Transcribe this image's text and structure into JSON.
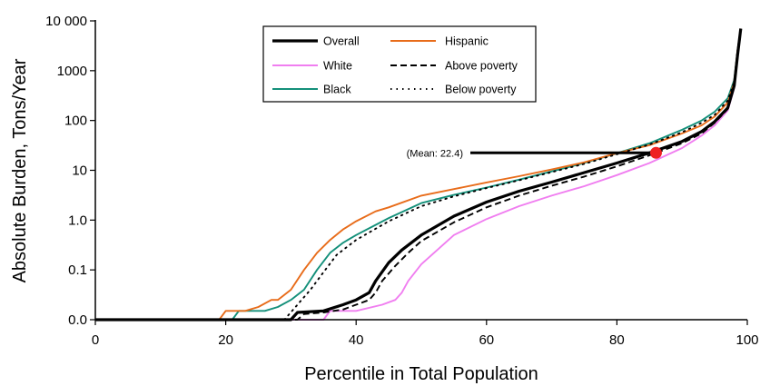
{
  "chart_data": {
    "type": "line",
    "xlabel": "Percentile in Total Population",
    "ylabel": "Absolute Burden, Tons/Year",
    "xlim": [
      0,
      100
    ],
    "x_scale": "linear",
    "y_scale": "log",
    "ylim": [
      0.01,
      10000
    ],
    "x_ticks": [
      0,
      20,
      40,
      60,
      80,
      100
    ],
    "x_tick_labels": [
      "0",
      "20",
      "40",
      "60",
      "80",
      "100"
    ],
    "y_ticks": [
      0.01,
      0.1,
      1,
      10,
      100,
      1000,
      10000
    ],
    "y_tick_labels": [
      "0.0",
      "0.1",
      "1.0",
      "10",
      "100",
      "1000",
      "10 000"
    ],
    "grid": false,
    "legend_position": "top-center",
    "legend_columns": 2,
    "series": [
      {
        "name": "Overall",
        "color": "#000000",
        "style": "solid",
        "x": [
          0,
          30,
          31,
          35,
          38,
          40,
          42,
          43,
          45,
          47,
          50,
          55,
          60,
          65,
          70,
          75,
          80,
          85,
          90,
          93,
          95,
          97,
          98,
          98.5,
          99
        ],
        "y": [
          0.01,
          0.01,
          0.014,
          0.015,
          0.02,
          0.025,
          0.035,
          0.06,
          0.14,
          0.25,
          0.5,
          1.2,
          2.3,
          3.8,
          5.8,
          9,
          14,
          22.4,
          38,
          60,
          95,
          180,
          500,
          2000,
          7000
        ]
      },
      {
        "name": "White",
        "color": "#f07ef0",
        "style": "solid",
        "x": [
          0,
          35,
          36,
          40,
          44,
          46,
          47,
          48,
          50,
          55,
          60,
          65,
          70,
          75,
          80,
          85,
          90,
          93,
          95,
          97,
          98,
          98.5,
          99
        ],
        "y": [
          0.01,
          0.01,
          0.015,
          0.015,
          0.02,
          0.025,
          0.035,
          0.06,
          0.13,
          0.5,
          1.05,
          1.9,
          3.1,
          4.8,
          8,
          14,
          28,
          50,
          80,
          160,
          450,
          2000,
          7000
        ]
      },
      {
        "name": "Black",
        "color": "#14907a",
        "style": "solid",
        "x": [
          0,
          21,
          22,
          26,
          28,
          30,
          32,
          34,
          36,
          38,
          40,
          45,
          50,
          55,
          60,
          65,
          70,
          75,
          80,
          85,
          90,
          93,
          95,
          97,
          98,
          98.5,
          99
        ],
        "y": [
          0.01,
          0.01,
          0.015,
          0.015,
          0.018,
          0.025,
          0.04,
          0.1,
          0.22,
          0.35,
          0.5,
          1.1,
          2.2,
          3.2,
          4.5,
          6.5,
          9.5,
          14,
          22,
          35,
          65,
          100,
          150,
          280,
          650,
          2500,
          7000
        ]
      },
      {
        "name": "Hispanic",
        "color": "#e86c1a",
        "style": "solid",
        "x": [
          0,
          19,
          20,
          23,
          25,
          27,
          28,
          30,
          32,
          34,
          36,
          38,
          40,
          43,
          45,
          50,
          55,
          60,
          65,
          70,
          75,
          80,
          85,
          90,
          93,
          95,
          97,
          98,
          98.5,
          99
        ],
        "y": [
          0.01,
          0.01,
          0.015,
          0.015,
          0.018,
          0.025,
          0.025,
          0.04,
          0.1,
          0.22,
          0.4,
          0.65,
          0.95,
          1.5,
          1.8,
          3.1,
          4.2,
          5.7,
          7.6,
          10.4,
          14.5,
          22,
          32,
          55,
          80,
          120,
          230,
          600,
          2500,
          7000
        ]
      },
      {
        "name": "Above poverty",
        "color": "#000000",
        "style": "dashed",
        "x": [
          0,
          31,
          32,
          35,
          38,
          40,
          42,
          43,
          44,
          46,
          48,
          50,
          55,
          60,
          65,
          70,
          75,
          80,
          85,
          90,
          93,
          95,
          97,
          98,
          98.5,
          99
        ],
        "y": [
          0.01,
          0.01,
          0.013,
          0.014,
          0.016,
          0.02,
          0.025,
          0.035,
          0.06,
          0.12,
          0.22,
          0.38,
          0.9,
          1.8,
          3.1,
          4.9,
          7.5,
          12,
          20,
          35,
          55,
          90,
          170,
          480,
          2000,
          7000
        ]
      },
      {
        "name": "Below poverty",
        "color": "#000000",
        "style": "dotted",
        "x": [
          0,
          29,
          31,
          33,
          35,
          37,
          40,
          45,
          50,
          55,
          60,
          65,
          70,
          75,
          80,
          85,
          90,
          93,
          95,
          97,
          98,
          98.5,
          99
        ],
        "y": [
          0.01,
          0.01,
          0.02,
          0.04,
          0.09,
          0.2,
          0.4,
          0.95,
          1.9,
          3,
          4.4,
          6.3,
          9.2,
          13.5,
          21,
          33,
          58,
          90,
          130,
          250,
          600,
          2500,
          7000
        ]
      }
    ],
    "annotations": [
      {
        "text": "(Mean: 22.4)",
        "y": 22.4,
        "marker_x": 86,
        "marker_color": "#ee2222"
      }
    ]
  }
}
